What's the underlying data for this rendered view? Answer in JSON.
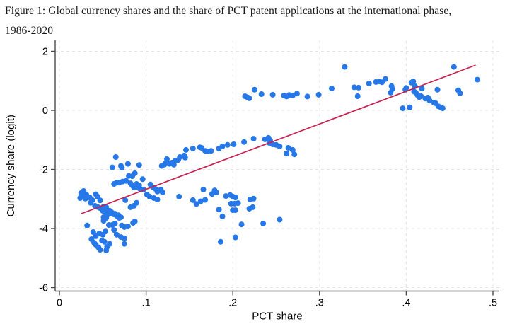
{
  "figure": {
    "caption_line1": "Figure 1: Global currency shares and the share of PCT patent applications at the international phase,",
    "caption_line2": "1986-2020"
  },
  "chart_data": {
    "type": "scatter",
    "title": "",
    "xlabel": "PCT share",
    "ylabel": "Currency share (logit)",
    "xlim": [
      0,
      0.5
    ],
    "ylim": [
      -6,
      2
    ],
    "grid": true,
    "x_ticks": [
      0,
      0.1,
      0.2,
      0.3,
      0.4,
      0.5
    ],
    "x_tick_labels": [
      "0",
      ".1",
      ".2",
      ".3",
      ".4",
      ".5"
    ],
    "y_ticks": [
      2,
      0,
      -2,
      -4,
      -6
    ],
    "y_tick_labels": [
      "2",
      "0",
      "-2",
      "-4",
      "-6"
    ],
    "point_color": "#2678e8",
    "trend_color": "#c8204e",
    "grid_color": "#e4e4e4",
    "axis_color": "#4a4a4a",
    "trend_line": {
      "x1": 0.025,
      "y1": -3.5,
      "x2": 0.48,
      "y2": 1.53
    },
    "points": [
      [
        0.214,
        0.48
      ],
      [
        0.217,
        0.44
      ],
      [
        0.219,
        0.41
      ],
      [
        0.225,
        0.7
      ],
      [
        0.233,
        0.55
      ],
      [
        0.246,
        0.53
      ],
      [
        0.259,
        0.5
      ],
      [
        0.262,
        0.47
      ],
      [
        0.265,
        0.52
      ],
      [
        0.269,
        0.5
      ],
      [
        0.274,
        0.57
      ],
      [
        0.286,
        0.47
      ],
      [
        0.299,
        0.53
      ],
      [
        0.314,
        0.74
      ],
      [
        0.329,
        1.47
      ],
      [
        0.34,
        0.78
      ],
      [
        0.345,
        0.77
      ],
      [
        0.344,
        0.48
      ],
      [
        0.357,
        0.91
      ],
      [
        0.365,
        0.96
      ],
      [
        0.369,
        0.98
      ],
      [
        0.372,
        0.95
      ],
      [
        0.376,
        1.06
      ],
      [
        0.383,
        0.82
      ],
      [
        0.384,
        0.72
      ],
      [
        0.382,
        0.6
      ],
      [
        0.396,
        0.07
      ],
      [
        0.404,
        0.1
      ],
      [
        0.399,
        0.7
      ],
      [
        0.4,
        0.76
      ],
      [
        0.406,
        0.94
      ],
      [
        0.408,
        0.98
      ],
      [
        0.41,
        0.82
      ],
      [
        0.409,
        0.64
      ],
      [
        0.411,
        0.6
      ],
      [
        0.413,
        0.52
      ],
      [
        0.415,
        0.45
      ],
      [
        0.417,
        0.48
      ],
      [
        0.418,
        0.74
      ],
      [
        0.422,
        0.4
      ],
      [
        0.425,
        0.43
      ],
      [
        0.427,
        0.33
      ],
      [
        0.432,
        0.26
      ],
      [
        0.434,
        0.24
      ],
      [
        0.437,
        0.14
      ],
      [
        0.44,
        0.1
      ],
      [
        0.442,
        0.07
      ],
      [
        0.436,
        0.7
      ],
      [
        0.455,
        1.47
      ],
      [
        0.46,
        0.68
      ],
      [
        0.462,
        0.58
      ],
      [
        0.482,
        1.04
      ],
      [
        0.061,
        -1.93
      ],
      [
        0.065,
        -1.58
      ],
      [
        0.071,
        -1.88
      ],
      [
        0.072,
        -1.94
      ],
      [
        0.079,
        -1.81
      ],
      [
        0.08,
        -2.22
      ],
      [
        0.084,
        -2.23
      ],
      [
        0.087,
        -2.13
      ],
      [
        0.092,
        -1.85
      ],
      [
        0.118,
        -1.88
      ],
      [
        0.121,
        -1.84
      ],
      [
        0.123,
        -1.77
      ],
      [
        0.124,
        -1.65
      ],
      [
        0.127,
        -1.81
      ],
      [
        0.13,
        -1.77
      ],
      [
        0.132,
        -1.84
      ],
      [
        0.134,
        -1.7
      ],
      [
        0.137,
        -1.68
      ],
      [
        0.139,
        -1.58
      ],
      [
        0.144,
        -1.53
      ],
      [
        0.145,
        -1.6
      ],
      [
        0.146,
        -1.34
      ],
      [
        0.154,
        -1.29
      ],
      [
        0.162,
        -1.25
      ],
      [
        0.164,
        -1.27
      ],
      [
        0.168,
        -1.37
      ],
      [
        0.171,
        -1.39
      ],
      [
        0.175,
        -1.37
      ],
      [
        0.184,
        -1.29
      ],
      [
        0.188,
        -1.22
      ],
      [
        0.194,
        -1.17
      ],
      [
        0.201,
        -1.15
      ],
      [
        0.213,
        -1.07
      ],
      [
        0.224,
        -0.96
      ],
      [
        0.237,
        -0.98
      ],
      [
        0.241,
        -0.93
      ],
      [
        0.243,
        -1.01
      ],
      [
        0.242,
        -1.1
      ],
      [
        0.246,
        -1.15
      ],
      [
        0.25,
        -1.17
      ],
      [
        0.254,
        -1.22
      ],
      [
        0.262,
        -1.46
      ],
      [
        0.264,
        -1.27
      ],
      [
        0.269,
        -1.34
      ],
      [
        0.271,
        -1.49
      ],
      [
        0.089,
        -2.49
      ],
      [
        0.092,
        -2.54
      ],
      [
        0.096,
        -2.33
      ],
      [
        0.097,
        -2.68
      ],
      [
        0.105,
        -2.51
      ],
      [
        0.108,
        -2.61
      ],
      [
        0.111,
        -2.66
      ],
      [
        0.113,
        -2.75
      ],
      [
        0.117,
        -2.68
      ],
      [
        0.119,
        -2.78
      ],
      [
        0.101,
        -2.85
      ],
      [
        0.104,
        -2.92
      ],
      [
        0.109,
        -2.97
      ],
      [
        0.113,
        -3.02
      ],
      [
        0.138,
        -2.92
      ],
      [
        0.154,
        -3.04
      ],
      [
        0.158,
        -3.17
      ],
      [
        0.163,
        -3.08
      ],
      [
        0.168,
        -3.03
      ],
      [
        0.166,
        -2.68
      ],
      [
        0.179,
        -2.71
      ],
      [
        0.176,
        -2.83
      ],
      [
        0.181,
        -2.78
      ],
      [
        0.192,
        -2.9
      ],
      [
        0.197,
        -2.87
      ],
      [
        0.2,
        -2.92
      ],
      [
        0.203,
        -2.95
      ],
      [
        0.198,
        -3.16
      ],
      [
        0.202,
        -3.16
      ],
      [
        0.206,
        -3.14
      ],
      [
        0.184,
        -3.36
      ],
      [
        0.2,
        -3.38
      ],
      [
        0.203,
        -3.38
      ],
      [
        0.188,
        -3.59
      ],
      [
        0.219,
        -3.33
      ],
      [
        0.223,
        -3.28
      ],
      [
        0.22,
        -3.02
      ],
      [
        0.224,
        -2.99
      ],
      [
        0.21,
        -3.86
      ],
      [
        0.235,
        -3.83
      ],
      [
        0.254,
        -3.7
      ],
      [
        0.186,
        -4.45
      ],
      [
        0.203,
        -4.3
      ],
      [
        0.025,
        -2.8
      ],
      [
        0.028,
        -2.73
      ],
      [
        0.027,
        -2.88
      ],
      [
        0.031,
        -2.85
      ],
      [
        0.024,
        -2.97
      ],
      [
        0.03,
        -2.99
      ],
      [
        0.035,
        -2.95
      ],
      [
        0.038,
        -3.04
      ],
      [
        0.036,
        -3.13
      ],
      [
        0.042,
        -2.84
      ],
      [
        0.044,
        -2.92
      ],
      [
        0.047,
        -3.05
      ],
      [
        0.041,
        -3.23
      ],
      [
        0.044,
        -3.27
      ],
      [
        0.047,
        -3.31
      ],
      [
        0.051,
        -3.26
      ],
      [
        0.054,
        -3.28
      ],
      [
        0.05,
        -3.4
      ],
      [
        0.053,
        -3.45
      ],
      [
        0.058,
        -3.4
      ],
      [
        0.06,
        -3.45
      ],
      [
        0.051,
        -3.62
      ],
      [
        0.054,
        -3.64
      ],
      [
        0.051,
        -3.74
      ],
      [
        0.056,
        -3.52
      ],
      [
        0.06,
        -3.5
      ],
      [
        0.063,
        -3.52
      ],
      [
        0.066,
        -3.57
      ],
      [
        0.069,
        -3.64
      ],
      [
        0.064,
        -3.5
      ],
      [
        0.068,
        -3.55
      ],
      [
        0.071,
        -3.62
      ],
      [
        0.063,
        -2.49
      ],
      [
        0.066,
        -2.45
      ],
      [
        0.069,
        -2.45
      ],
      [
        0.073,
        -2.41
      ],
      [
        0.077,
        -2.39
      ],
      [
        0.082,
        -2.47
      ],
      [
        0.086,
        -2.61
      ],
      [
        0.084,
        -2.54
      ],
      [
        0.089,
        -2.59
      ],
      [
        0.093,
        -2.66
      ],
      [
        0.076,
        -3.04
      ],
      [
        0.089,
        -3.13
      ],
      [
        0.082,
        -3.28
      ],
      [
        0.086,
        -3.23
      ],
      [
        0.032,
        -3.9
      ],
      [
        0.039,
        -4.12
      ],
      [
        0.042,
        -4.26
      ],
      [
        0.046,
        -4.17
      ],
      [
        0.05,
        -4.21
      ],
      [
        0.053,
        -4.1
      ],
      [
        0.057,
        -3.88
      ],
      [
        0.061,
        -3.88
      ],
      [
        0.064,
        -3.83
      ],
      [
        0.049,
        -4.41
      ],
      [
        0.052,
        -4.45
      ],
      [
        0.055,
        -4.62
      ],
      [
        0.037,
        -4.36
      ],
      [
        0.04,
        -4.48
      ],
      [
        0.042,
        -4.55
      ],
      [
        0.045,
        -4.64
      ],
      [
        0.047,
        -4.72
      ],
      [
        0.054,
        -4.74
      ],
      [
        0.058,
        -4.52
      ],
      [
        0.063,
        -4.05
      ],
      [
        0.066,
        -4.21
      ],
      [
        0.071,
        -4.29
      ],
      [
        0.075,
        -4.52
      ],
      [
        0.075,
        -4.33
      ],
      [
        0.072,
        -3.9
      ],
      [
        0.075,
        -3.95
      ],
      [
        0.079,
        -3.93
      ],
      [
        0.085,
        -3.81
      ],
      [
        0.087,
        -3.76
      ]
    ]
  }
}
